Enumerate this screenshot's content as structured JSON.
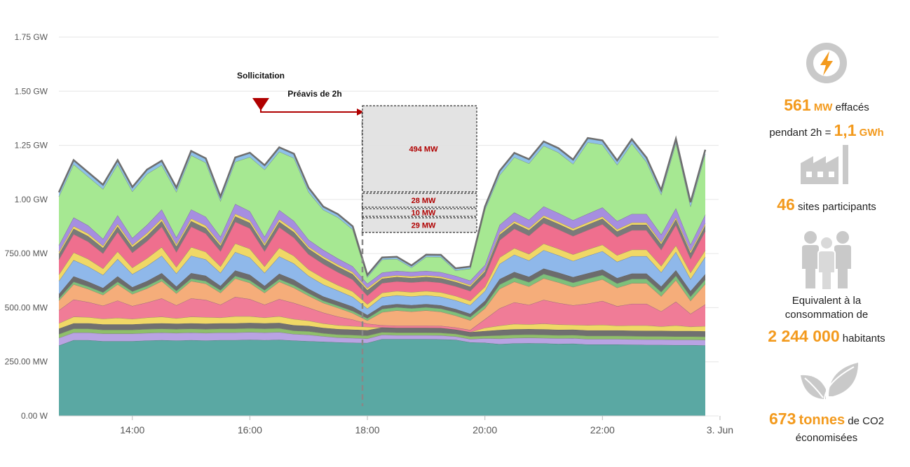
{
  "chart_data": {
    "type": "area",
    "stacked": true,
    "xlabel": "",
    "ylabel": "",
    "x_ticks": [
      "14:00",
      "16:00",
      "18:00",
      "20:00",
      "22:00",
      "3. Jun"
    ],
    "y_ticks": [
      "0.00 W",
      "250.00 MW",
      "500.00 MW",
      "750.00 MW",
      "1.00 GW",
      "1.25 GW",
      "1.50 GW",
      "1.75 GW"
    ],
    "ylim": [
      0,
      1750
    ],
    "y_unit": "MW",
    "x_hours": [
      12.75,
      13,
      13.25,
      13.5,
      13.75,
      14,
      14.25,
      14.5,
      14.75,
      15,
      15.25,
      15.5,
      15.75,
      16,
      16.25,
      16.5,
      16.75,
      17,
      17.25,
      17.5,
      17.75,
      18,
      18.25,
      18.5,
      18.75,
      19,
      19.25,
      19.5,
      19.75,
      20,
      20.25,
      20.5,
      20.75,
      21,
      21.25,
      21.5,
      21.75,
      22,
      22.25,
      22.5,
      22.75,
      23,
      23.25,
      23.5,
      23.75
    ],
    "xlim": [
      12.75,
      23.75
    ],
    "grid": true,
    "legend": "none",
    "series": [
      {
        "color": "#5aa8a3",
        "values": [
          325,
          350,
          350,
          345,
          345,
          345,
          348,
          350,
          348,
          350,
          348,
          350,
          350,
          352,
          350,
          352,
          348,
          345,
          343,
          340,
          338,
          337,
          355,
          355,
          355,
          355,
          354,
          352,
          340,
          338,
          332,
          335,
          336,
          335,
          333,
          334,
          330,
          330,
          330,
          329,
          328,
          328,
          327,
          327,
          326
        ]
      },
      {
        "color": "#b9a3e3",
        "values": [
          35,
          35,
          35,
          35,
          35,
          35,
          35,
          35,
          35,
          35,
          35,
          35,
          35,
          35,
          35,
          35,
          30,
          30,
          25,
          22,
          22,
          20,
          20,
          18,
          18,
          18,
          18,
          15,
          15,
          20,
          25,
          25,
          25,
          25,
          25,
          25,
          25,
          25,
          25,
          25,
          25,
          25,
          25,
          25,
          25
        ]
      },
      {
        "color": "#8fbf6a",
        "values": [
          18,
          18,
          18,
          18,
          18,
          18,
          18,
          18,
          18,
          18,
          18,
          18,
          18,
          18,
          18,
          18,
          16,
          16,
          14,
          14,
          14,
          14,
          12,
          12,
          12,
          12,
          12,
          12,
          12,
          12,
          15,
          15,
          15,
          15,
          15,
          15,
          15,
          15,
          15,
          15,
          15,
          15,
          15,
          15,
          15
        ]
      },
      {
        "color": "#707070",
        "values": [
          25,
          25,
          25,
          25,
          25,
          25,
          25,
          25,
          25,
          25,
          25,
          25,
          25,
          25,
          25,
          25,
          25,
          25,
          25,
          25,
          25,
          25,
          22,
          22,
          22,
          22,
          22,
          20,
          20,
          22,
          25,
          25,
          25,
          25,
          25,
          25,
          25,
          25,
          25,
          25,
          25,
          25,
          25,
          25,
          25
        ]
      },
      {
        "color": "#f0d866",
        "values": [
          25,
          30,
          28,
          26,
          30,
          25,
          28,
          30,
          25,
          30,
          30,
          26,
          32,
          30,
          26,
          30,
          28,
          24,
          20,
          18,
          16,
          15,
          0,
          0,
          0,
          0,
          0,
          0,
          0,
          15,
          20,
          25,
          22,
          26,
          24,
          22,
          24,
          26,
          22,
          24,
          25,
          20,
          26,
          20,
          24
        ]
      },
      {
        "color": "#f07c97",
        "values": [
          60,
          80,
          70,
          60,
          80,
          60,
          70,
          85,
          60,
          85,
          80,
          60,
          90,
          80,
          60,
          80,
          75,
          60,
          50,
          40,
          30,
          15,
          10,
          10,
          10,
          10,
          10,
          10,
          10,
          40,
          80,
          100,
          90,
          110,
          100,
          90,
          100,
          110,
          90,
          100,
          100,
          70,
          110,
          60,
          100
        ]
      },
      {
        "color": "#f5ad7a",
        "values": [
          45,
          70,
          60,
          50,
          75,
          55,
          65,
          80,
          55,
          80,
          75,
          55,
          85,
          75,
          55,
          80,
          70,
          55,
          45,
          40,
          30,
          15,
          60,
          70,
          65,
          70,
          65,
          55,
          45,
          50,
          90,
          95,
          85,
          100,
          95,
          85,
          95,
          100,
          85,
          95,
          95,
          70,
          100,
          60,
          95
        ]
      },
      {
        "color": "#7dc07a",
        "values": [
          10,
          12,
          12,
          12,
          12,
          12,
          12,
          12,
          12,
          12,
          12,
          12,
          12,
          12,
          12,
          12,
          12,
          12,
          10,
          10,
          10,
          10,
          15,
          15,
          15,
          15,
          15,
          15,
          15,
          15,
          20,
          20,
          20,
          20,
          20,
          20,
          20,
          20,
          20,
          20,
          20,
          20,
          20,
          20,
          20
        ]
      },
      {
        "color": "#6c6c6c",
        "values": [
          20,
          25,
          22,
          20,
          25,
          20,
          22,
          25,
          20,
          25,
          25,
          20,
          25,
          25,
          20,
          25,
          25,
          20,
          20,
          20,
          20,
          15,
          15,
          15,
          15,
          15,
          15,
          15,
          15,
          20,
          25,
          25,
          25,
          25,
          25,
          25,
          25,
          25,
          25,
          25,
          25,
          25,
          25,
          25,
          25
        ]
      },
      {
        "color": "#8fb8ea",
        "values": [
          60,
          75,
          70,
          60,
          80,
          60,
          70,
          80,
          60,
          80,
          75,
          60,
          85,
          80,
          60,
          80,
          75,
          60,
          55,
          50,
          45,
          30,
          40,
          40,
          40,
          40,
          40,
          40,
          40,
          45,
          70,
          80,
          75,
          85,
          80,
          75,
          80,
          85,
          75,
          80,
          80,
          65,
          85,
          55,
          80
        ]
      },
      {
        "color": "#f0d866",
        "values": [
          30,
          35,
          35,
          30,
          35,
          30,
          35,
          40,
          30,
          40,
          35,
          30,
          40,
          40,
          30,
          40,
          35,
          30,
          30,
          25,
          25,
          20,
          20,
          20,
          20,
          20,
          20,
          20,
          20,
          20,
          30,
          30,
          30,
          30,
          30,
          30,
          30,
          30,
          30,
          30,
          30,
          30,
          30,
          30,
          30
        ]
      },
      {
        "color": "#ef6f8e",
        "values": [
          70,
          85,
          80,
          70,
          90,
          70,
          80,
          95,
          70,
          95,
          85,
          70,
          100,
          95,
          70,
          95,
          85,
          70,
          65,
          60,
          55,
          40,
          45,
          45,
          45,
          45,
          45,
          45,
          45,
          50,
          80,
          90,
          85,
          95,
          90,
          85,
          90,
          95,
          85,
          90,
          90,
          75,
          95,
          65,
          90
        ]
      },
      {
        "color": "#7a7a7a",
        "values": [
          25,
          25,
          25,
          25,
          25,
          25,
          25,
          25,
          25,
          25,
          25,
          25,
          25,
          25,
          25,
          25,
          25,
          25,
          25,
          25,
          25,
          25,
          20,
          20,
          20,
          20,
          20,
          20,
          20,
          20,
          25,
          25,
          25,
          25,
          25,
          25,
          25,
          25,
          25,
          25,
          25,
          25,
          25,
          25,
          25
        ]
      },
      {
        "color": "#f0d866",
        "values": [
          10,
          12,
          12,
          10,
          12,
          10,
          12,
          12,
          10,
          12,
          12,
          10,
          12,
          12,
          10,
          12,
          12,
          10,
          10,
          10,
          10,
          10,
          8,
          8,
          8,
          8,
          8,
          8,
          8,
          8,
          10,
          10,
          10,
          10,
          10,
          10,
          10,
          10,
          10,
          10,
          10,
          10,
          10,
          10,
          10
        ]
      },
      {
        "color": "#a68ee0",
        "values": [
          30,
          40,
          38,
          32,
          40,
          32,
          38,
          42,
          32,
          42,
          40,
          32,
          45,
          42,
          32,
          42,
          40,
          32,
          30,
          28,
          26,
          20,
          20,
          20,
          20,
          20,
          20,
          20,
          20,
          22,
          35,
          40,
          38,
          42,
          40,
          38,
          40,
          42,
          38,
          40,
          40,
          35,
          42,
          30,
          40
        ]
      },
      {
        "color": "#a6e892",
        "values": [
          225,
          245,
          225,
          230,
          235,
          215,
          235,
          205,
          210,
          250,
          250,
          165,
          195,
          250,
          310,
          270,
          290,
          220,
          185,
          190,
          170,
          30,
          60,
          55,
          20,
          65,
          70,
          25,
          55,
          255,
          230,
          255,
          260,
          280,
          280,
          260,
          330,
          290,
          260,
          325,
          240,
          185,
          300,
          175,
          280
        ]
      },
      {
        "color": "#8ec0ea",
        "values": [
          20,
          20,
          20,
          20,
          20,
          20,
          20,
          20,
          20,
          20,
          20,
          20,
          20,
          20,
          20,
          20,
          20,
          20,
          15,
          15,
          15,
          10,
          10,
          10,
          10,
          10,
          10,
          10,
          10,
          15,
          20,
          20,
          20,
          20,
          20,
          20,
          20,
          20,
          20,
          20,
          20,
          20,
          20,
          20,
          20
        ]
      }
    ]
  },
  "annotations": {
    "sollicitation": "Sollicitation",
    "preavis": "Préavis de 2h",
    "boxes": [
      "494 MW",
      "28 MW",
      "10 MW",
      "29 MW"
    ]
  },
  "stats": {
    "effaces_value": "561",
    "effaces_unit": "MW",
    "effaces_text": "effacés",
    "pendant_text": "pendant",
    "pendant_duration": "2h =",
    "energy_value": "1,1",
    "energy_unit": "GWh",
    "sites_value": "46",
    "sites_text": "sites participants",
    "equiv_line1": "Equivalent à la",
    "equiv_line2": "consommation de",
    "habitants_value": "2 244 000",
    "habitants_text": "habitants",
    "co2_value": "673",
    "co2_unit": "tonnes",
    "co2_text": "de CO2",
    "co2_line2": "économisées"
  },
  "colors": {
    "accent": "#f39a1d",
    "icon_bg": "#c9c9c9",
    "arrow": "#b00000"
  }
}
